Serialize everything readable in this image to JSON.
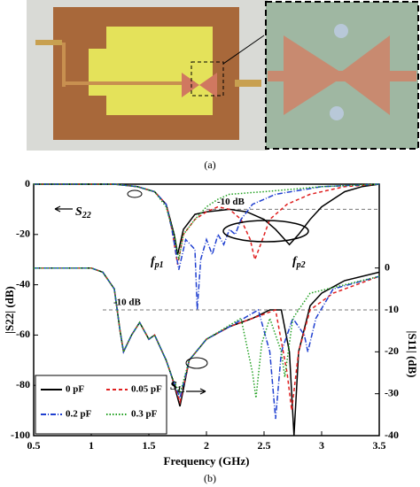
{
  "caption_a": "(a)",
  "caption_b": "(b)",
  "chart_data": {
    "type": "line",
    "xlabel": "Frequency (GHz)",
    "ylabel": "|S22| (dB)",
    "y2label": "|S11| (dB)",
    "xlim": [
      0.5,
      3.5
    ],
    "xticks": [
      0.5,
      1.0,
      1.5,
      2.0,
      2.5,
      3.0,
      3.5
    ],
    "ylim": [
      -100,
      0
    ],
    "yticks": [
      0,
      -20,
      -40,
      -60,
      -80,
      -100
    ],
    "y2lim": [
      -40,
      20
    ],
    "y2ticks": [
      0,
      -10,
      -20,
      -30,
      -40
    ],
    "legend": "lower left",
    "reference_lines": [
      {
        "axis": "y",
        "value": -10,
        "from": 2.0,
        "label": "-10 dB"
      },
      {
        "axis": "y2",
        "value": -10,
        "from": 1.1,
        "label": "-10 dB"
      }
    ],
    "annotations": [
      {
        "text": "S",
        "sub": "22"
      },
      {
        "text": "f",
        "sub": "p1"
      },
      {
        "text": "f",
        "sub": "p2"
      },
      {
        "text": "S",
        "sub": "11"
      }
    ],
    "series": [
      {
        "name": "0 pF",
        "color": "#000000",
        "dash": "none",
        "s22": {
          "x": [
            0.5,
            1.2,
            1.4,
            1.55,
            1.65,
            1.72,
            1.75,
            1.8,
            1.9,
            2.0,
            2.2,
            2.35,
            2.5,
            2.6,
            2.68,
            2.72,
            2.8,
            2.9,
            3.0,
            3.1,
            3.2,
            3.35,
            3.5
          ],
          "values": [
            0,
            0,
            -1,
            -3,
            -8,
            -20,
            -28,
            -18,
            -12,
            -11,
            -10,
            -11,
            -14,
            -18,
            -22,
            -24,
            -20,
            -14,
            -9,
            -6,
            -3,
            -1,
            0
          ]
        },
        "s11": {
          "axis": "y2",
          "x": [
            0.5,
            1.0,
            1.1,
            1.2,
            1.25,
            1.28,
            1.35,
            1.42,
            1.5,
            1.55,
            1.65,
            1.7,
            1.77,
            1.85,
            2.0,
            2.2,
            2.4,
            2.55,
            2.65,
            2.72,
            2.76,
            2.8,
            2.9,
            3.0,
            3.2,
            3.5
          ],
          "values": [
            0,
            0,
            -1,
            -5,
            -15,
            -20,
            -16,
            -13,
            -17,
            -16,
            -22,
            -26,
            -33,
            -22,
            -17,
            -14,
            -12,
            -10,
            -10,
            -20,
            -40,
            -20,
            -9,
            -6,
            -3,
            -1
          ]
        }
      },
      {
        "name": "0.05 pF",
        "color": "#e02020",
        "dash": "4,3",
        "s22": {
          "x": [
            0.5,
            1.2,
            1.4,
            1.55,
            1.65,
            1.7,
            1.75,
            1.8,
            1.9,
            2.0,
            2.1,
            2.2,
            2.3,
            2.38,
            2.42,
            2.47,
            2.55,
            2.7,
            2.9,
            3.2,
            3.5
          ],
          "values": [
            0,
            0,
            -1,
            -3,
            -8,
            -18,
            -32,
            -20,
            -14,
            -11,
            -9,
            -10,
            -14,
            -22,
            -30,
            -24,
            -14,
            -8,
            -4,
            -1,
            0
          ]
        },
        "s11": {
          "axis": "y2",
          "x": [
            0.5,
            1.0,
            1.1,
            1.2,
            1.25,
            1.28,
            1.35,
            1.42,
            1.5,
            1.55,
            1.65,
            1.7,
            1.77,
            1.85,
            2.0,
            2.2,
            2.4,
            2.6,
            2.7,
            2.74,
            2.8,
            2.9,
            3.1,
            3.5
          ],
          "values": [
            0,
            0,
            -1,
            -5,
            -15,
            -20,
            -16,
            -13,
            -17,
            -16,
            -22,
            -26,
            -32,
            -22,
            -17,
            -14,
            -12,
            -10,
            -25,
            -34,
            -20,
            -10,
            -6,
            -2
          ]
        }
      },
      {
        "name": "0.2 pF",
        "color": "#2040d0",
        "dash": "6,2,1,2",
        "s22": {
          "x": [
            0.5,
            1.2,
            1.4,
            1.55,
            1.65,
            1.7,
            1.76,
            1.82,
            1.9,
            1.92,
            1.95,
            2.0,
            2.05,
            2.1,
            2.15,
            2.2,
            2.25,
            2.3,
            2.4,
            2.6,
            3.0,
            3.5
          ],
          "values": [
            0,
            0,
            -1,
            -3,
            -8,
            -18,
            -34,
            -22,
            -26,
            -50,
            -30,
            -22,
            -28,
            -20,
            -24,
            -18,
            -20,
            -14,
            -8,
            -4,
            -1,
            0
          ]
        },
        "s11": {
          "axis": "y2",
          "x": [
            0.5,
            1.0,
            1.1,
            1.2,
            1.25,
            1.28,
            1.35,
            1.42,
            1.5,
            1.55,
            1.65,
            1.7,
            1.77,
            1.85,
            2.0,
            2.2,
            2.45,
            2.55,
            2.6,
            2.65,
            2.75,
            2.85,
            2.88,
            2.95,
            3.1,
            3.5
          ],
          "values": [
            0,
            0,
            -1,
            -5,
            -15,
            -20,
            -16,
            -13,
            -17,
            -16,
            -22,
            -26,
            -31,
            -22,
            -17,
            -14,
            -10,
            -20,
            -36,
            -20,
            -12,
            -16,
            -20,
            -12,
            -5,
            -2
          ]
        }
      },
      {
        "name": "0.3 pF",
        "color": "#20a020",
        "dash": "1.5,2",
        "s22": {
          "x": [
            0.5,
            1.2,
            1.4,
            1.55,
            1.65,
            1.73,
            1.76,
            1.8,
            1.9,
            2.0,
            2.1,
            2.2,
            2.5,
            3.0,
            3.5
          ],
          "values": [
            0,
            0,
            -1,
            -3,
            -9,
            -22,
            -30,
            -20,
            -14,
            -9,
            -6,
            -4,
            -3,
            -1,
            0
          ]
        },
        "s11": {
          "axis": "y2",
          "x": [
            0.5,
            1.0,
            1.1,
            1.2,
            1.25,
            1.28,
            1.35,
            1.42,
            1.5,
            1.55,
            1.65,
            1.7,
            1.77,
            1.85,
            2.0,
            2.3,
            2.4,
            2.43,
            2.48,
            2.55,
            2.65,
            2.68,
            2.75,
            2.9,
            3.5
          ],
          "values": [
            0,
            0,
            -1,
            -5,
            -15,
            -20,
            -16,
            -13,
            -17,
            -16,
            -22,
            -26,
            -30,
            -22,
            -17,
            -12,
            -25,
            -31,
            -18,
            -12,
            -20,
            -26,
            -12,
            -6,
            -2
          ]
        }
      }
    ]
  }
}
